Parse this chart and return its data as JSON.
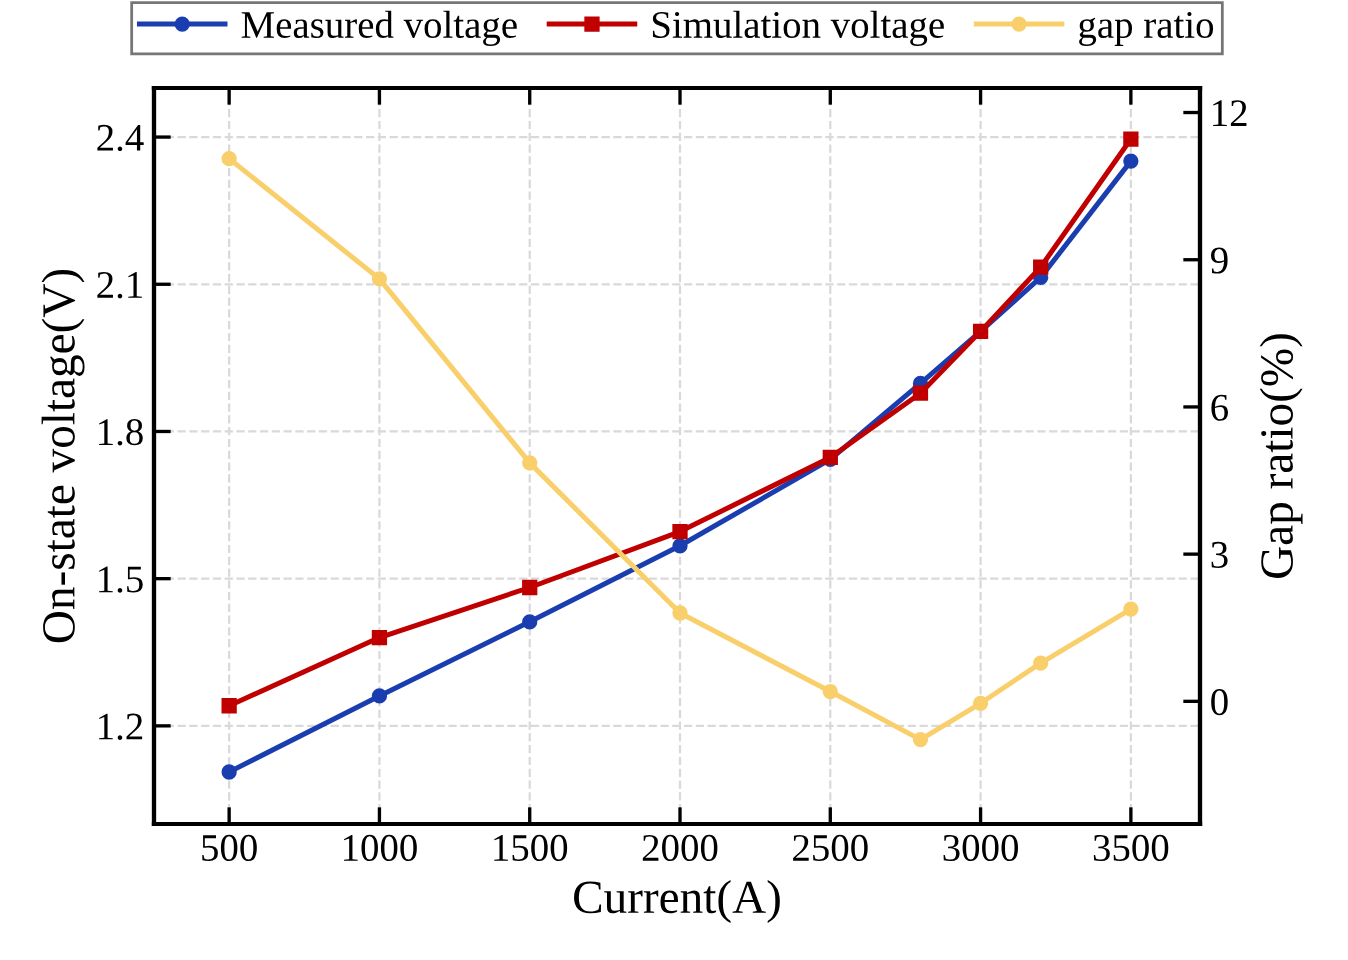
{
  "chart_data": {
    "type": "line",
    "xlabel": "Current(A)",
    "ylabel": "On-state voltage(V)",
    "y2label": "Gap ratio(%)",
    "x": [
      500,
      1000,
      1500,
      2000,
      2500,
      2800,
      3000,
      3200,
      3500
    ],
    "xlim": [
      250,
      3730
    ],
    "xticks": [
      500,
      1000,
      1500,
      2000,
      2500,
      3000,
      3500
    ],
    "ylim": [
      1.0,
      2.5
    ],
    "yticks": [
      1.2,
      1.5,
      1.8,
      2.1,
      2.4
    ],
    "y2lim": [
      -2.5,
      12.5
    ],
    "y2ticks": [
      0,
      3,
      6,
      9,
      12
    ],
    "grid": true,
    "legend": "top",
    "line_style": "solid",
    "series": [
      {
        "name": "Measured voltage",
        "color": "#1a3db0",
        "marker": "circle",
        "values": [
          1.106,
          1.261,
          1.412,
          1.567,
          1.743,
          1.898,
          2.004,
          2.114,
          2.351
        ]
      },
      {
        "name": "Simulation voltage",
        "color": "#c00000",
        "marker": "square",
        "values": [
          1.241,
          1.38,
          1.482,
          1.596,
          1.747,
          1.878,
          2.004,
          2.135,
          2.396
        ]
      },
      {
        "name": "gap ratio",
        "color": "#f9cf6b",
        "marker": "circle",
        "axis": "y2",
        "values": [
          11.06,
          8.61,
          4.86,
          1.8,
          0.2,
          -0.78,
          -0.04,
          0.78,
          1.88
        ]
      }
    ]
  }
}
